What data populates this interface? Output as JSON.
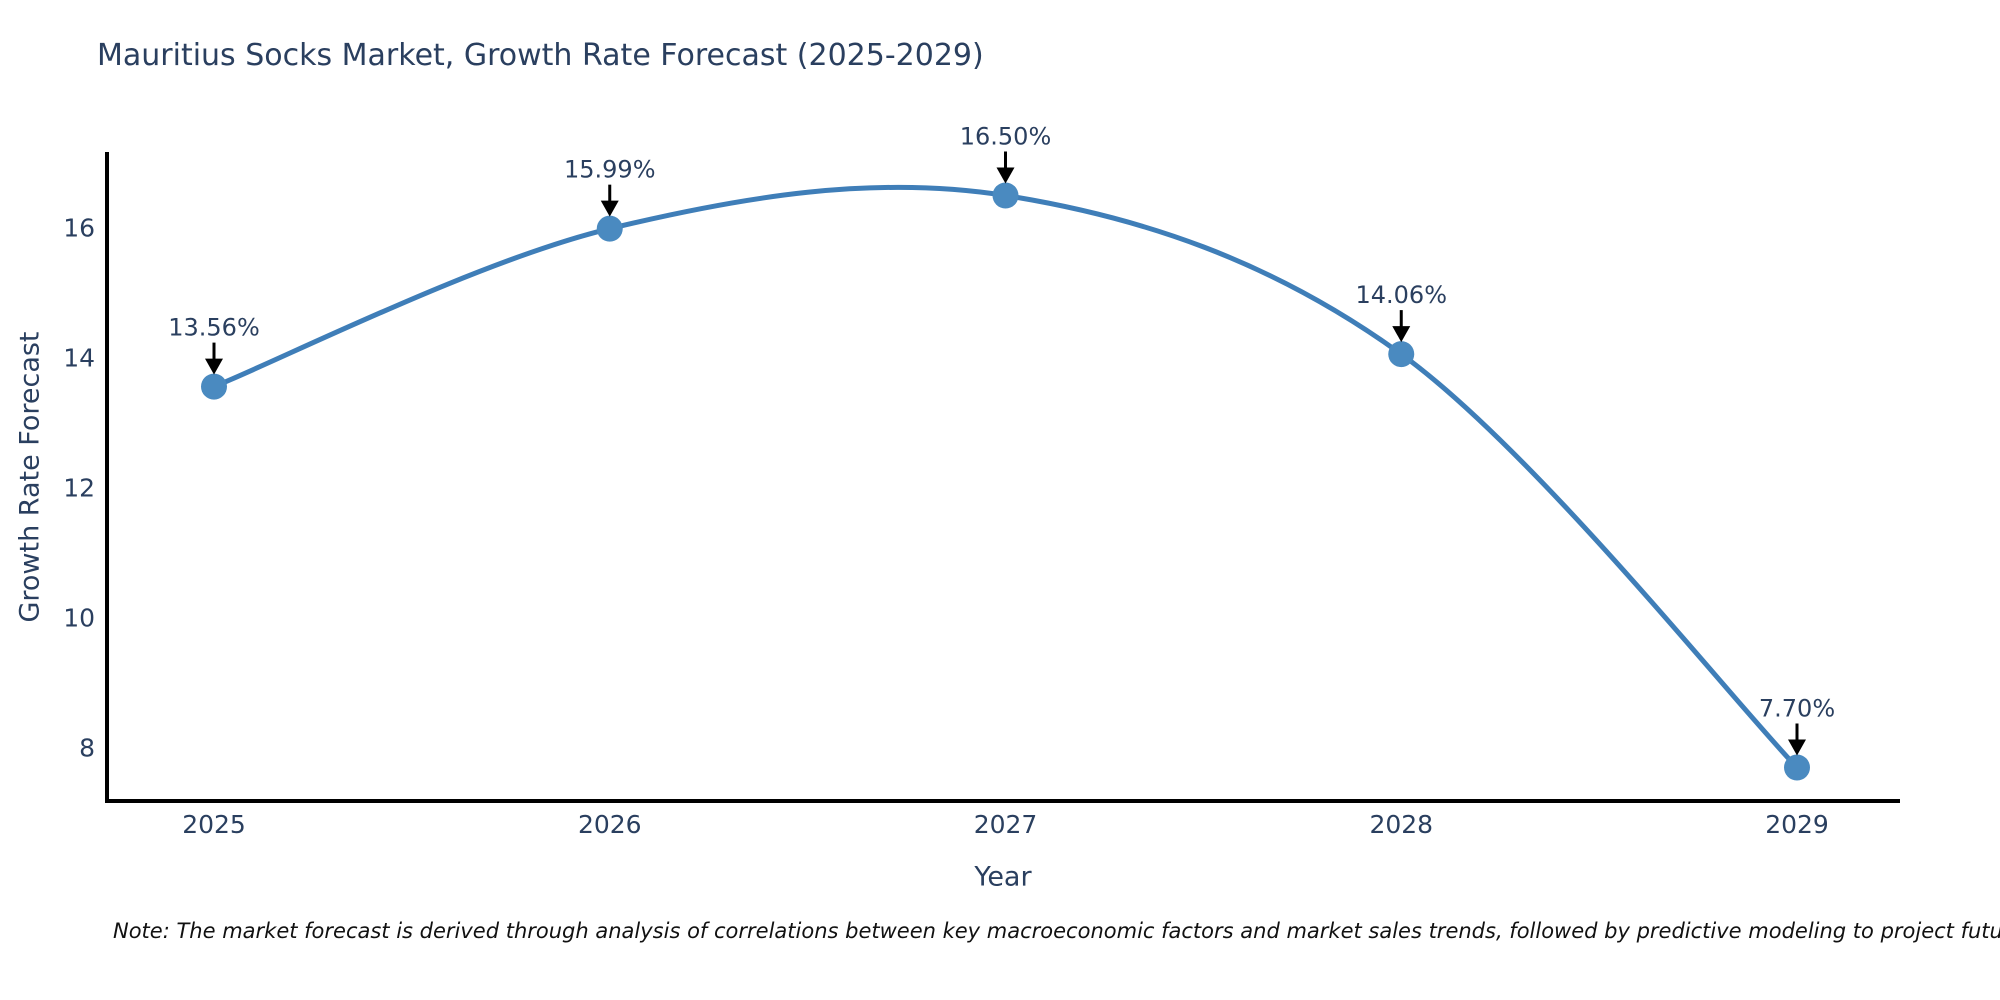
{
  "page": {
    "background": "#ffffff"
  },
  "chart_data": {
    "type": "line",
    "title": "Mauritius Socks Market, Growth Rate Forecast (2025-2029)",
    "xlabel": "Year",
    "ylabel": "Growth Rate Forecast",
    "x": [
      2025,
      2026,
      2027,
      2028,
      2029
    ],
    "series": [
      {
        "name": "Growth Rate Forecast",
        "values": [
          13.56,
          15.99,
          16.5,
          14.06,
          7.7
        ],
        "point_labels": [
          "13.56%",
          "15.99%",
          "16.50%",
          "14.06%",
          "7.70%"
        ]
      }
    ],
    "yticks": [
      "8",
      "10",
      "12",
      "14",
      "16"
    ],
    "ytick_values": [
      8,
      10,
      12,
      14,
      16
    ],
    "xlim": [
      2024.72,
      2029.26
    ],
    "ylim": [
      7.18,
      17.15
    ],
    "grid": false,
    "legend": "none",
    "line_shape": "spline",
    "colors": {
      "line": "#3f7eb8",
      "marker": "#4a8ac0",
      "text": "#2a3f5f",
      "axis": "#000000",
      "annotation_arrow": "#000000"
    }
  },
  "note": {
    "text": "Note: The market forecast is derived through analysis of correlations between key macroeconomic factors and market sales trends, followed by predictive modeling to project future sales"
  }
}
